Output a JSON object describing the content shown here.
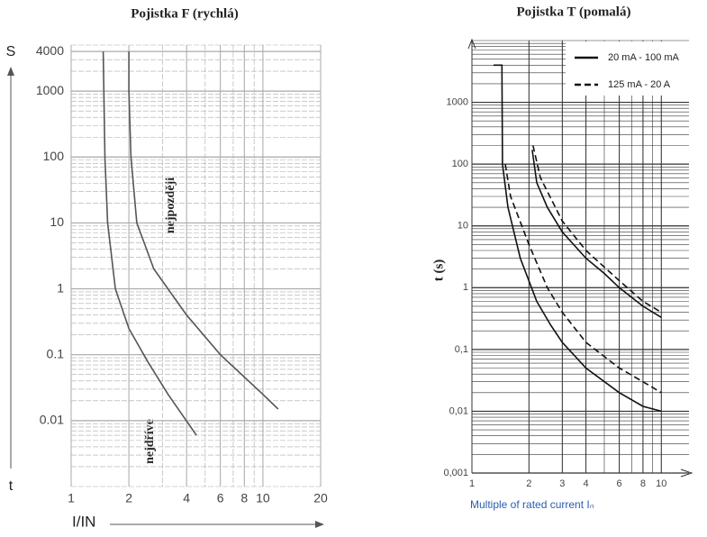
{
  "chart_data": [
    {
      "type": "line",
      "title": "Pojistka F (rychlá)",
      "ylabel_top": "S",
      "ylabel_bottom": "t",
      "xlabel": "I/IN",
      "log_x": true,
      "log_y": true,
      "grid": true,
      "minor_grid": true,
      "xlim": [
        1,
        20
      ],
      "ylim": [
        0.001,
        5000
      ],
      "xticks": [
        1,
        2,
        4,
        6,
        8,
        10,
        20
      ],
      "yticks": [
        4000,
        1000,
        100,
        10,
        1,
        0.1,
        0.01
      ],
      "annotations": [
        "nejpozději",
        "nejdříve"
      ],
      "series": [
        {
          "color": "#555555",
          "curves": [
            {
              "x": [
                1.47,
                1.48,
                1.5,
                1.55,
                1.7,
                2.0,
                2.5,
                3.2,
                4.5
              ],
              "values": [
                4000,
                1000,
                100,
                10,
                1,
                0.25,
                0.08,
                0.025,
                0.006
              ]
            }
          ]
        },
        {
          "color": "#555555",
          "curves": [
            {
              "x": [
                2.0,
                2.0,
                2.05,
                2.2,
                2.7,
                4,
                6,
                10,
                12
              ],
              "values": [
                4000,
                1000,
                100,
                10,
                2,
                0.4,
                0.1,
                0.025,
                0.015
              ]
            }
          ]
        }
      ]
    },
    {
      "type": "line",
      "title": "Pojistka T (pomalá)",
      "ylabel": "t (s)",
      "xlabel": "Multiple of rated current Iₙ",
      "log_x": true,
      "log_y": true,
      "grid": true,
      "minor_grid": true,
      "legend": "upper right",
      "xlim": [
        1,
        14
      ],
      "ylim": [
        0.001,
        10000
      ],
      "xticks": [
        1,
        2,
        3,
        4,
        6,
        8,
        10
      ],
      "yticks": [
        1000,
        100,
        10,
        1,
        {
          "value": 0.1,
          "label": "0,1"
        },
        {
          "value": 0.01,
          "label": "0,01"
        },
        {
          "value": 0.001,
          "label": "0,001"
        }
      ],
      "series": [
        {
          "name": "20 mA - 100 mA",
          "color": "#111111",
          "dash": false,
          "curves": [
            {
              "x": [
                1.3,
                1.44,
                1.45,
                1.55,
                1.8,
                2.2,
                2.6,
                3,
                4,
                6,
                8,
                10
              ],
              "values": [
                4000,
                4000,
                100,
                20,
                3,
                0.6,
                0.25,
                0.13,
                0.05,
                0.02,
                0.012,
                0.01
              ]
            },
            {
              "x": [
                2.08,
                2.2,
                2.5,
                3,
                4,
                5,
                6,
                8,
                10
              ],
              "values": [
                170,
                50,
                20,
                8,
                3,
                1.7,
                1,
                0.5,
                0.33
              ]
            }
          ]
        },
        {
          "name": "125 mA - 20 A",
          "color": "#111111",
          "dash": true,
          "curves": [
            {
              "x": [
                1.5,
                1.6,
                2,
                2.5,
                3,
                4,
                6,
                8,
                10
              ],
              "values": [
                100,
                30,
                5,
                1,
                0.4,
                0.13,
                0.05,
                0.03,
                0.02
              ]
            },
            {
              "x": [
                2.1,
                2.3,
                3,
                4,
                6,
                8,
                10
              ],
              "values": [
                200,
                60,
                12,
                4,
                1.3,
                0.6,
                0.4
              ]
            }
          ]
        }
      ]
    }
  ]
}
